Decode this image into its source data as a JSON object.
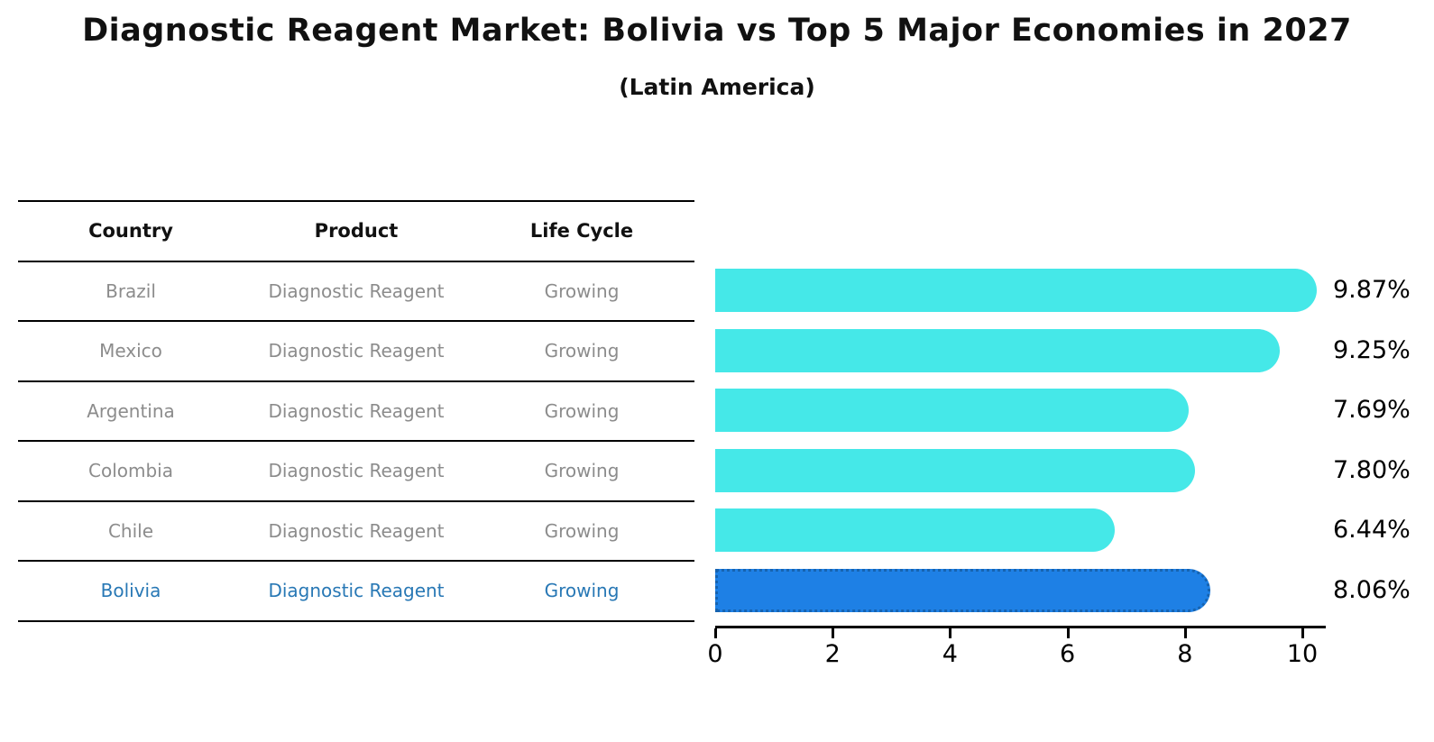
{
  "title": "Diagnostic Reagent Market: Bolivia vs Top 5 Major Economies in 2027",
  "subtitle": "(Latin America)",
  "table": {
    "headers": [
      "Country",
      "Product",
      "Life Cycle"
    ],
    "rows": [
      {
        "country": "Brazil",
        "product": "Diagnostic Reagent",
        "life_cycle": "Growing",
        "highlight": false
      },
      {
        "country": "Mexico",
        "product": "Diagnostic Reagent",
        "life_cycle": "Growing",
        "highlight": false
      },
      {
        "country": "Argentina",
        "product": "Diagnostic Reagent",
        "life_cycle": "Growing",
        "highlight": false
      },
      {
        "country": "Colombia",
        "product": "Diagnostic Reagent",
        "life_cycle": "Growing",
        "highlight": false
      },
      {
        "country": "Chile",
        "product": "Diagnostic Reagent",
        "life_cycle": "Growing",
        "highlight": false
      },
      {
        "country": "Bolivia",
        "product": "Diagnostic Reagent",
        "life_cycle": "Growing",
        "highlight": true
      }
    ]
  },
  "chart_data": {
    "type": "bar",
    "orientation": "horizontal",
    "categories": [
      "Brazil",
      "Mexico",
      "Argentina",
      "Colombia",
      "Chile",
      "Bolivia"
    ],
    "values": [
      9.87,
      9.25,
      7.69,
      7.8,
      6.44,
      8.06
    ],
    "labels": [
      "9.87%",
      "9.25%",
      "7.69%",
      "7.80%",
      "6.44%",
      "8.06%"
    ],
    "highlight_index": 5,
    "xlim": [
      0,
      10
    ],
    "x_ticks": [
      0,
      2,
      4,
      6,
      8,
      10
    ],
    "grid": false,
    "legend": "none",
    "colors": {
      "bar": "#45e8e8",
      "highlight_bar": "#1e80e5",
      "highlight_border": "#1663b0",
      "highlight_text": "#2878b5",
      "axis": "#000000",
      "value_label": "#000000",
      "row_text": "#8c8c8c",
      "header_text": "#111111"
    }
  }
}
